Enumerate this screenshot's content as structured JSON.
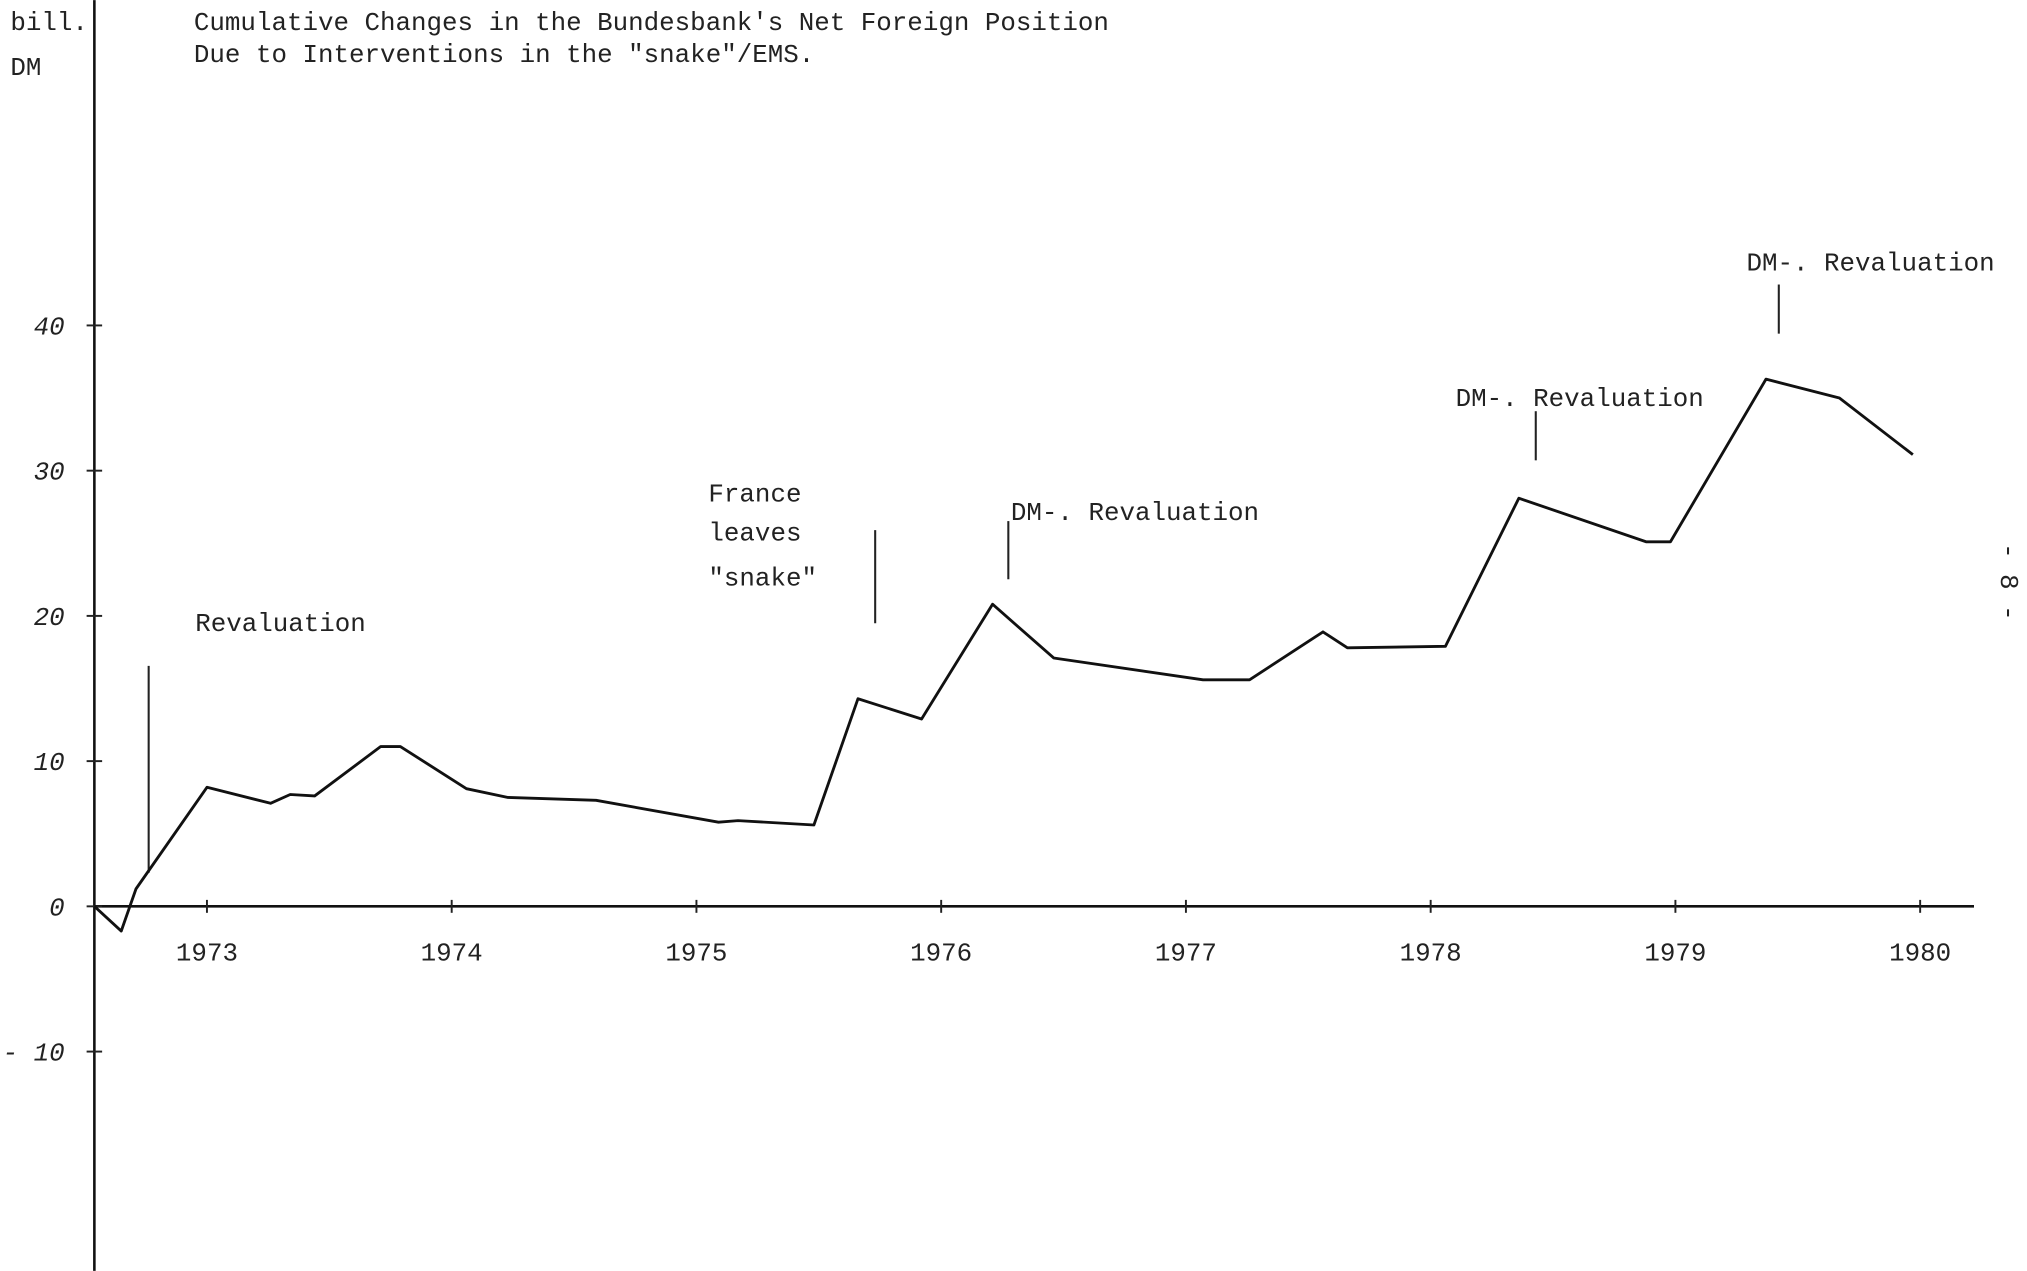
{
  "chart_data": {
    "type": "line",
    "title": [
      "Cumulative Changes in the Bundesbank's Net Foreign Position",
      "Due to Interventions in the \"snake\"/EMS."
    ],
    "y_label": [
      "bill.",
      "DM"
    ],
    "x": [
      1972.54,
      1972.65,
      1972.71,
      1973.0,
      1973.26,
      1973.34,
      1973.44,
      1973.71,
      1973.79,
      1974.06,
      1974.23,
      1974.59,
      1975.09,
      1975.17,
      1975.48,
      1975.66,
      1975.92,
      1976.21,
      1976.46,
      1977.07,
      1977.26,
      1977.56,
      1977.66,
      1978.06,
      1978.36,
      1978.88,
      1978.98,
      1979.37,
      1979.67,
      1979.97
    ],
    "values": [
      0,
      -1.7,
      1.2,
      8.2,
      7.1,
      7.7,
      7.6,
      11.0,
      11.0,
      8.1,
      7.5,
      7.3,
      5.8,
      5.9,
      5.6,
      14.3,
      12.9,
      20.8,
      17.1,
      15.6,
      15.6,
      18.9,
      17.8,
      17.9,
      28.1,
      25.1,
      25.1,
      36.3,
      35.0,
      31.1
    ],
    "color": "#111111",
    "xlim": [
      1972.54,
      1980.22
    ],
    "xticks": [
      1973,
      1974,
      1975,
      1976,
      1977,
      1978,
      1979,
      1980
    ],
    "ylim": [
      -25.1,
      62.4
    ],
    "yticks": [
      40,
      30,
      20,
      10,
      0,
      {
        "value": -10,
        "label": "- 10"
      }
    ],
    "annotations": [
      "Revaluation",
      "France",
      "leaves",
      "\"snake\"",
      "DM-. Revaluation",
      "DM-. Revaluation",
      "DM-. Revaluation"
    ],
    "page_number": "- 8 -"
  }
}
